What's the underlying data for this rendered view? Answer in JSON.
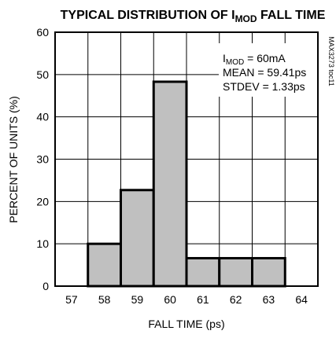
{
  "chart_data": {
    "type": "bar",
    "title": "TYPICAL DISTRIBUTION OF I",
    "title_subscript": "MOD",
    "title_suffix": " FALL TIME",
    "xlabel": "FALL TIME (ps)",
    "ylabel": "PERCENT OF UNITS (%)",
    "side_label": "MAX3273 toc11",
    "x_ticks": [
      "57",
      "58",
      "59",
      "60",
      "61",
      "62",
      "63",
      "64"
    ],
    "y_ticks": [
      "0",
      "10",
      "20",
      "30",
      "40",
      "50",
      "60"
    ],
    "xlim": [
      56.5,
      64.5
    ],
    "ylim": [
      0,
      60
    ],
    "grid": true,
    "bar_color": "#c0c0c0",
    "bars": [
      {
        "x": 58,
        "value": 10
      },
      {
        "x": 59,
        "value": 22.7
      },
      {
        "x": 60,
        "value": 48.3
      },
      {
        "x": 61,
        "value": 6.6
      },
      {
        "x": 62,
        "value": 6.6
      },
      {
        "x": 63,
        "value": 6.6
      }
    ],
    "annotations": {
      "imod_prefix": "I",
      "imod_subscript": "MOD",
      "imod_value": " = 60mA",
      "mean": "MEAN = 59.41ps",
      "stdev": "STDEV = 1.33ps"
    }
  }
}
